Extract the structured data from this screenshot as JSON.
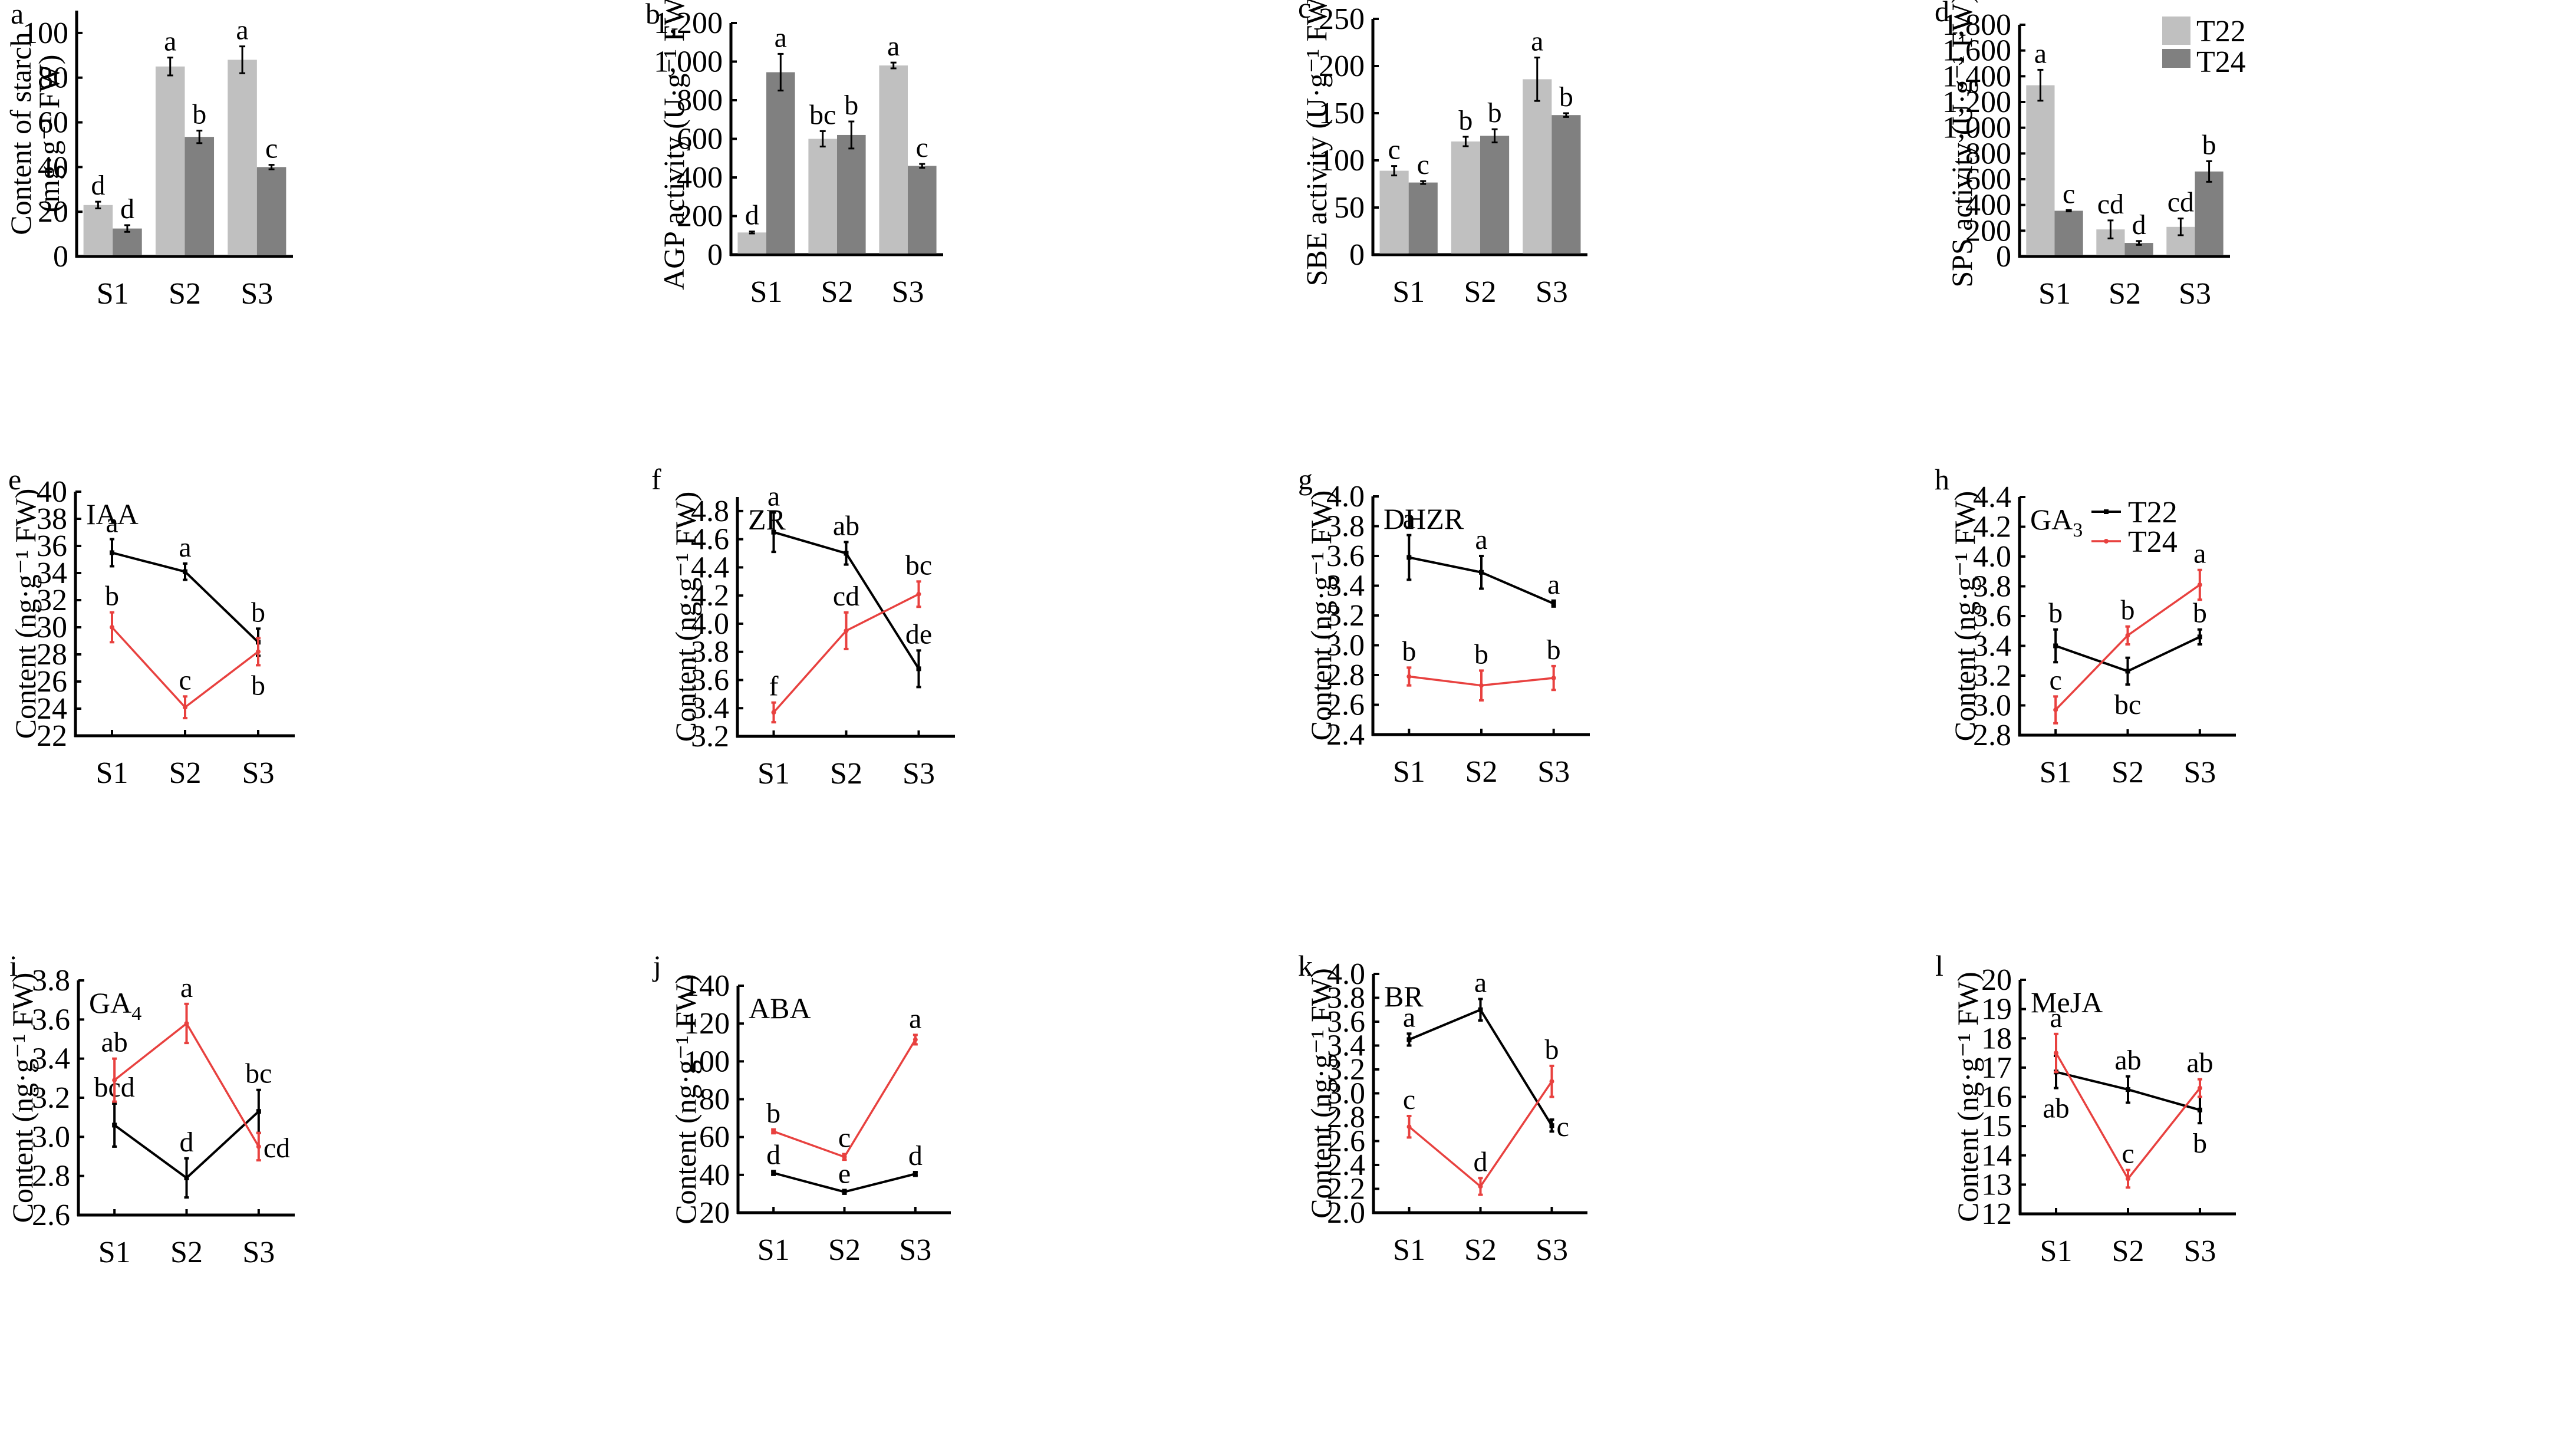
{
  "figure": {
    "series_names": [
      "T22",
      "T24"
    ],
    "colors": {
      "T22_bar": "#c0c0c0",
      "T24_bar": "#808080",
      "T22_line": "#000000",
      "T24_line": "#e8413f",
      "axis": "#000000"
    }
  },
  "chart_data": [
    {
      "panel": "a",
      "type": "bar",
      "ylabel_lines": [
        "Content of starch",
        "(mg·g⁻¹ FW)"
      ],
      "categories": [
        "S1",
        "S2",
        "S3"
      ],
      "ylim": [
        0,
        110
      ],
      "yticks": [
        0,
        20,
        40,
        60,
        80,
        100
      ],
      "tick_format": "plain",
      "series": [
        {
          "name": "T22",
          "values": [
            23,
            85,
            88
          ],
          "errors": [
            1.5,
            4,
            6
          ],
          "letters": [
            "d",
            "a",
            "a"
          ]
        },
        {
          "name": "T24",
          "values": [
            12.5,
            53.5,
            40
          ],
          "errors": [
            1.5,
            2.8,
            1
          ],
          "letters": [
            "d",
            "b",
            "c"
          ]
        }
      ],
      "legend": null
    },
    {
      "panel": "b",
      "type": "bar",
      "ylabel_lines": [
        "AGP activity (U·g⁻¹ FW)"
      ],
      "categories": [
        "S1",
        "S2",
        "S3"
      ],
      "ylim": [
        0,
        1200
      ],
      "yticks": [
        0,
        200,
        400,
        600,
        800,
        1000,
        1200
      ],
      "tick_format": "comma",
      "series": [
        {
          "name": "T22",
          "values": [
            115,
            600,
            980
          ],
          "errors": [
            5,
            40,
            15
          ],
          "letters": [
            "d",
            "bc",
            "a"
          ]
        },
        {
          "name": "T24",
          "values": [
            945,
            620,
            460
          ],
          "errors": [
            95,
            70,
            10
          ],
          "letters": [
            "a",
            "b",
            "c"
          ]
        }
      ],
      "legend": null
    },
    {
      "panel": "c",
      "type": "bar",
      "ylabel_lines": [
        "SBE activity (U·g⁻¹ FW)"
      ],
      "categories": [
        "S1",
        "S2",
        "S3"
      ],
      "ylim": [
        0,
        250
      ],
      "yticks": [
        0,
        50,
        100,
        150,
        200,
        250
      ],
      "tick_format": "plain",
      "series": [
        {
          "name": "T22",
          "values": [
            89,
            120,
            186
          ],
          "errors": [
            5,
            5,
            23
          ],
          "letters": [
            "c",
            "b",
            "a"
          ]
        },
        {
          "name": "T24",
          "values": [
            76.5,
            126,
            148
          ],
          "errors": [
            1.5,
            7,
            2
          ],
          "letters": [
            "c",
            "b",
            "b"
          ]
        }
      ],
      "legend": null
    },
    {
      "panel": "d",
      "type": "bar",
      "ylabel_lines": [
        "SPS activity (U·g⁻¹ FW)"
      ],
      "categories": [
        "S1",
        "S2",
        "S3"
      ],
      "ylim": [
        0,
        1800
      ],
      "yticks": [
        0,
        200,
        400,
        600,
        800,
        1000,
        1200,
        1400,
        1600,
        1800
      ],
      "tick_format": "comma",
      "series": [
        {
          "name": "T22",
          "values": [
            1330,
            210,
            230
          ],
          "errors": [
            120,
            70,
            65
          ],
          "letters": [
            "a",
            "cd",
            "cd"
          ]
        },
        {
          "name": "T24",
          "values": [
            355,
            105,
            660
          ],
          "errors": [
            5,
            15,
            80
          ],
          "letters": [
            "c",
            "d",
            "b"
          ]
        }
      ],
      "legend": "top-right"
    },
    {
      "panel": "e",
      "type": "line",
      "hormone": "IAA",
      "hormone_sub": "",
      "ylabel_lines": [
        "Content (ng·g⁻¹ FW)"
      ],
      "categories": [
        "S1",
        "S2",
        "S3"
      ],
      "ylim": [
        22,
        40
      ],
      "yticks": [
        22,
        24,
        26,
        28,
        30,
        32,
        34,
        36,
        38,
        40
      ],
      "tick_format": "plain",
      "series": [
        {
          "name": "T22",
          "values": [
            35.5,
            34.1,
            28.9
          ],
          "errors": [
            1.0,
            0.6,
            1.0
          ],
          "letters": [
            "a",
            "a",
            "b"
          ],
          "letter_pos": [
            "above",
            "above",
            "above"
          ]
        },
        {
          "name": "T24",
          "values": [
            30.0,
            24.1,
            28.2
          ],
          "errors": [
            1.1,
            0.8,
            1.0
          ],
          "letters": [
            "b",
            "c",
            "b"
          ],
          "letter_pos": [
            "above",
            "above",
            "below"
          ]
        }
      ],
      "legend": null
    },
    {
      "panel": "f",
      "type": "line",
      "hormone": "ZR",
      "hormone_sub": "",
      "ylabel_lines": [
        "Content (ng·g⁻¹ FW)"
      ],
      "categories": [
        "S1",
        "S2",
        "S3"
      ],
      "ylim": [
        3.2,
        4.9
      ],
      "yticks": [
        3.2,
        3.4,
        3.6,
        3.8,
        4.0,
        4.2,
        4.4,
        4.6,
        4.8
      ],
      "tick_format": "one-decimal",
      "series": [
        {
          "name": "T22",
          "values": [
            4.65,
            4.5,
            3.68
          ],
          "errors": [
            0.14,
            0.08,
            0.13
          ],
          "letters": [
            "a",
            "ab",
            "de"
          ],
          "letter_pos": [
            "above",
            "above",
            "above"
          ]
        },
        {
          "name": "T24",
          "values": [
            3.37,
            3.95,
            4.21
          ],
          "errors": [
            0.07,
            0.13,
            0.09
          ],
          "letters": [
            "f",
            "cd",
            "bc"
          ],
          "letter_pos": [
            "above",
            "above",
            "above"
          ]
        }
      ],
      "legend": null
    },
    {
      "panel": "g",
      "type": "line",
      "hormone": "DHZR",
      "hormone_sub": "",
      "ylabel_lines": [
        "Content (ng·g⁻¹ FW)"
      ],
      "categories": [
        "S1",
        "S2",
        "S3"
      ],
      "ylim": [
        2.4,
        4.0
      ],
      "yticks": [
        2.4,
        2.6,
        2.8,
        3.0,
        3.2,
        3.4,
        3.6,
        3.8,
        4.0
      ],
      "tick_format": "one-decimal",
      "series": [
        {
          "name": "T22",
          "values": [
            3.59,
            3.49,
            3.28
          ],
          "errors": [
            0.15,
            0.11,
            0.02
          ],
          "letters": [
            "a",
            "a",
            "a"
          ],
          "letter_pos": [
            "above",
            "above",
            "above"
          ]
        },
        {
          "name": "T24",
          "values": [
            2.79,
            2.73,
            2.78
          ],
          "errors": [
            0.06,
            0.1,
            0.08
          ],
          "letters": [
            "b",
            "b",
            "b"
          ],
          "letter_pos": [
            "above",
            "above",
            "above"
          ]
        }
      ],
      "legend": null
    },
    {
      "panel": "h",
      "type": "line",
      "hormone": "GA",
      "hormone_sub": "3",
      "ylabel_lines": [
        "Content (ng·g⁻¹ FW)"
      ],
      "categories": [
        "S1",
        "S2",
        "S3"
      ],
      "ylim": [
        2.8,
        4.4
      ],
      "yticks": [
        2.8,
        3.0,
        3.2,
        3.4,
        3.6,
        3.8,
        4.0,
        4.2,
        4.4
      ],
      "tick_format": "one-decimal",
      "series": [
        {
          "name": "T22",
          "values": [
            3.4,
            3.23,
            3.46
          ],
          "errors": [
            0.11,
            0.09,
            0.05
          ],
          "letters": [
            "b",
            "bc",
            "b"
          ],
          "letter_pos": [
            "above",
            "below",
            "above"
          ]
        },
        {
          "name": "T24",
          "values": [
            2.97,
            3.47,
            3.81
          ],
          "errors": [
            0.09,
            0.06,
            0.1
          ],
          "letters": [
            "c",
            "b",
            "a"
          ],
          "letter_pos": [
            "above",
            "above",
            "above"
          ]
        }
      ],
      "legend": "top-right"
    },
    {
      "panel": "i",
      "type": "line",
      "hormone": "GA",
      "hormone_sub": "4",
      "ylabel_lines": [
        "Content (ng·g⁻¹ FW)"
      ],
      "categories": [
        "S1",
        "S2",
        "S3"
      ],
      "ylim": [
        2.6,
        3.8
      ],
      "yticks": [
        2.6,
        2.8,
        3.0,
        3.2,
        3.4,
        3.6,
        3.8
      ],
      "tick_format": "one-decimal",
      "series": [
        {
          "name": "T22",
          "values": [
            3.06,
            2.79,
            3.13
          ],
          "errors": [
            0.11,
            0.1,
            0.11
          ],
          "letters": [
            "bcd",
            "d",
            "bc"
          ],
          "letter_pos": [
            "above",
            "above",
            "above"
          ]
        },
        {
          "name": "T24",
          "values": [
            3.29,
            3.58,
            2.95
          ],
          "errors": [
            0.11,
            0.1,
            0.07
          ],
          "letters": [
            "ab",
            "a",
            "cd"
          ],
          "letter_pos": [
            "above",
            "above",
            "right"
          ]
        }
      ],
      "legend": null
    },
    {
      "panel": "j",
      "type": "line",
      "hormone": "ABA",
      "hormone_sub": "",
      "ylabel_lines": [
        "Content (ng·g⁻¹ FW)"
      ],
      "categories": [
        "S1",
        "S2",
        "S3"
      ],
      "ylim": [
        20,
        140
      ],
      "yticks": [
        20,
        40,
        60,
        80,
        100,
        120,
        140
      ],
      "tick_format": "plain",
      "series": [
        {
          "name": "T22",
          "values": [
            41,
            31,
            40.5
          ],
          "errors": [
            1,
            1,
            1
          ],
          "letters": [
            "d",
            "e",
            "d"
          ],
          "letter_pos": [
            "above",
            "above",
            "above"
          ]
        },
        {
          "name": "T24",
          "values": [
            63,
            49.5,
            111.5
          ],
          "errors": [
            1,
            1.5,
            2.5
          ],
          "letters": [
            "b",
            "c",
            "a"
          ],
          "letter_pos": [
            "above",
            "above",
            "above"
          ]
        }
      ],
      "legend": null
    },
    {
      "panel": "k",
      "type": "line",
      "hormone": "BR",
      "hormone_sub": "",
      "ylabel_lines": [
        "Content (ng·g⁻¹ FW)"
      ],
      "categories": [
        "S1",
        "S2",
        "S3"
      ],
      "ylim": [
        2.0,
        4.0
      ],
      "yticks": [
        2.0,
        2.2,
        2.4,
        2.6,
        2.8,
        3.0,
        3.2,
        3.4,
        3.6,
        3.8,
        4.0
      ],
      "tick_format": "one-decimal",
      "series": [
        {
          "name": "T22",
          "values": [
            3.45,
            3.7,
            2.73
          ],
          "errors": [
            0.05,
            0.09,
            0.05
          ],
          "letters": [
            "a",
            "a",
            "c"
          ],
          "letter_pos": [
            "above",
            "above",
            "right"
          ]
        },
        {
          "name": "T24",
          "values": [
            2.72,
            2.22,
            3.1
          ],
          "errors": [
            0.09,
            0.07,
            0.13
          ],
          "letters": [
            "c",
            "d",
            "b"
          ],
          "letter_pos": [
            "above",
            "above",
            "above"
          ]
        }
      ],
      "legend": null
    },
    {
      "panel": "l",
      "type": "line",
      "hormone": "MeJA",
      "hormone_sub": "",
      "ylabel_lines": [
        "Content (ng·g⁻¹ FW)"
      ],
      "categories": [
        "S1",
        "S2",
        "S3"
      ],
      "ylim": [
        12,
        20
      ],
      "yticks": [
        12,
        13,
        14,
        15,
        16,
        17,
        18,
        19,
        20
      ],
      "tick_format": "plain",
      "series": [
        {
          "name": "T22",
          "values": [
            16.85,
            16.25,
            15.55
          ],
          "errors": [
            0.55,
            0.45,
            0.45
          ],
          "letters": [
            "ab",
            "ab",
            "b"
          ],
          "letter_pos": [
            "below",
            "above",
            "below"
          ]
        },
        {
          "name": "T24",
          "values": [
            17.5,
            13.2,
            16.3
          ],
          "errors": [
            0.65,
            0.3,
            0.3
          ],
          "letters": [
            "a",
            "c",
            "ab"
          ],
          "letter_pos": [
            "above",
            "above",
            "above"
          ]
        }
      ],
      "legend": null
    }
  ]
}
